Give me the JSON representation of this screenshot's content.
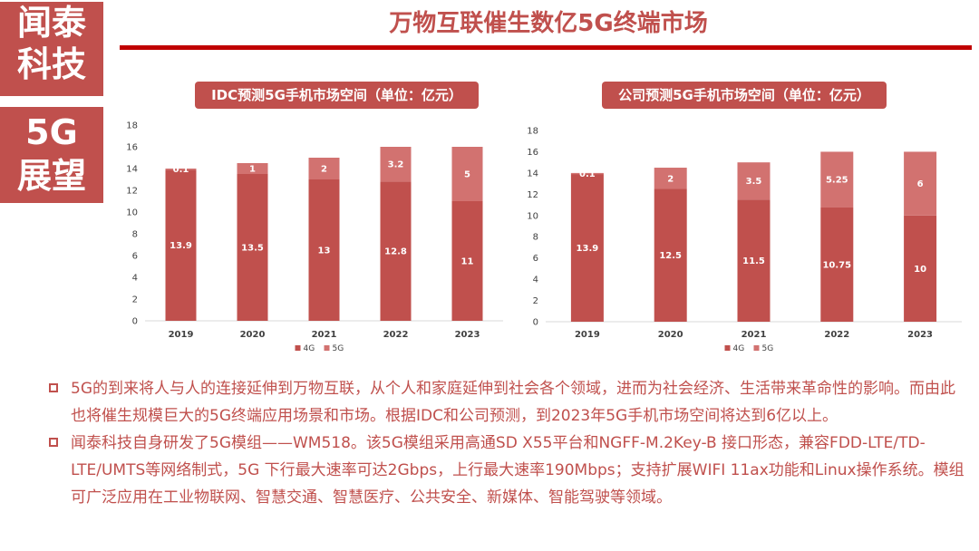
{
  "brand": {
    "lines_top": [
      "闻泰",
      "科技"
    ],
    "lines_bottom": [
      "5G",
      "展望"
    ]
  },
  "page": {
    "title": "万物互联催生数亿5G终端市场"
  },
  "colors": {
    "accent": "#c0504d",
    "rule": "#c00000",
    "series_4g": "#c0504d",
    "series_5g": "#d27270",
    "axis": "#d9d9d9"
  },
  "chart_data": [
    {
      "type": "bar",
      "stacked": true,
      "title": "IDC预测5G手机市场空间（单位：亿元）",
      "categories": [
        "2019",
        "2020",
        "2021",
        "2022",
        "2023"
      ],
      "series": [
        {
          "name": "4G",
          "values": [
            13.9,
            13.5,
            13,
            12.8,
            11
          ]
        },
        {
          "name": "5G",
          "values": [
            0.1,
            1,
            2,
            3.2,
            5
          ]
        }
      ],
      "ylim": [
        0,
        18
      ],
      "yticks": [
        0,
        2,
        4,
        6,
        8,
        10,
        12,
        14,
        16,
        18
      ],
      "legend": "bottom"
    },
    {
      "type": "bar",
      "stacked": true,
      "title": "公司预测5G手机市场空间（单位：亿元）",
      "categories": [
        "2019",
        "2020",
        "2021",
        "2022",
        "2023"
      ],
      "series": [
        {
          "name": "4G",
          "values": [
            13.9,
            12.5,
            11.5,
            10.75,
            10
          ]
        },
        {
          "name": "5G",
          "values": [
            0.1,
            2,
            3.5,
            5.25,
            6
          ]
        }
      ],
      "ylim": [
        0,
        18
      ],
      "yticks": [
        0,
        2,
        4,
        6,
        8,
        10,
        12,
        14,
        16,
        18
      ],
      "legend": "bottom"
    }
  ],
  "bullets": [
    "5G的到来将人与人的连接延伸到万物互联，从个人和家庭延伸到社会各个领域，进而为社会经济、生活带来革命性的影响。而由此也将催生规模巨大的5G终端应用场景和市场。根据IDC和公司预测，到2023年5G手机市场空间将达到6亿以上。",
    "闻泰科技自身研发了5G模组——WM518。该5G模组采用高通SD X55平台和NGFF-M.2Key-B 接口形态，兼容FDD-LTE/TD-LTE/UMTS等网络制式，5G 下行最大速率可达2Gbps，上行最大速率190Mbps；支持扩展WIFI 11ax功能和Linux操作系统。模组可广泛应用在工业物联网、智慧交通、智慧医疗、公共安全、新媒体、智能驾驶等领域。"
  ]
}
